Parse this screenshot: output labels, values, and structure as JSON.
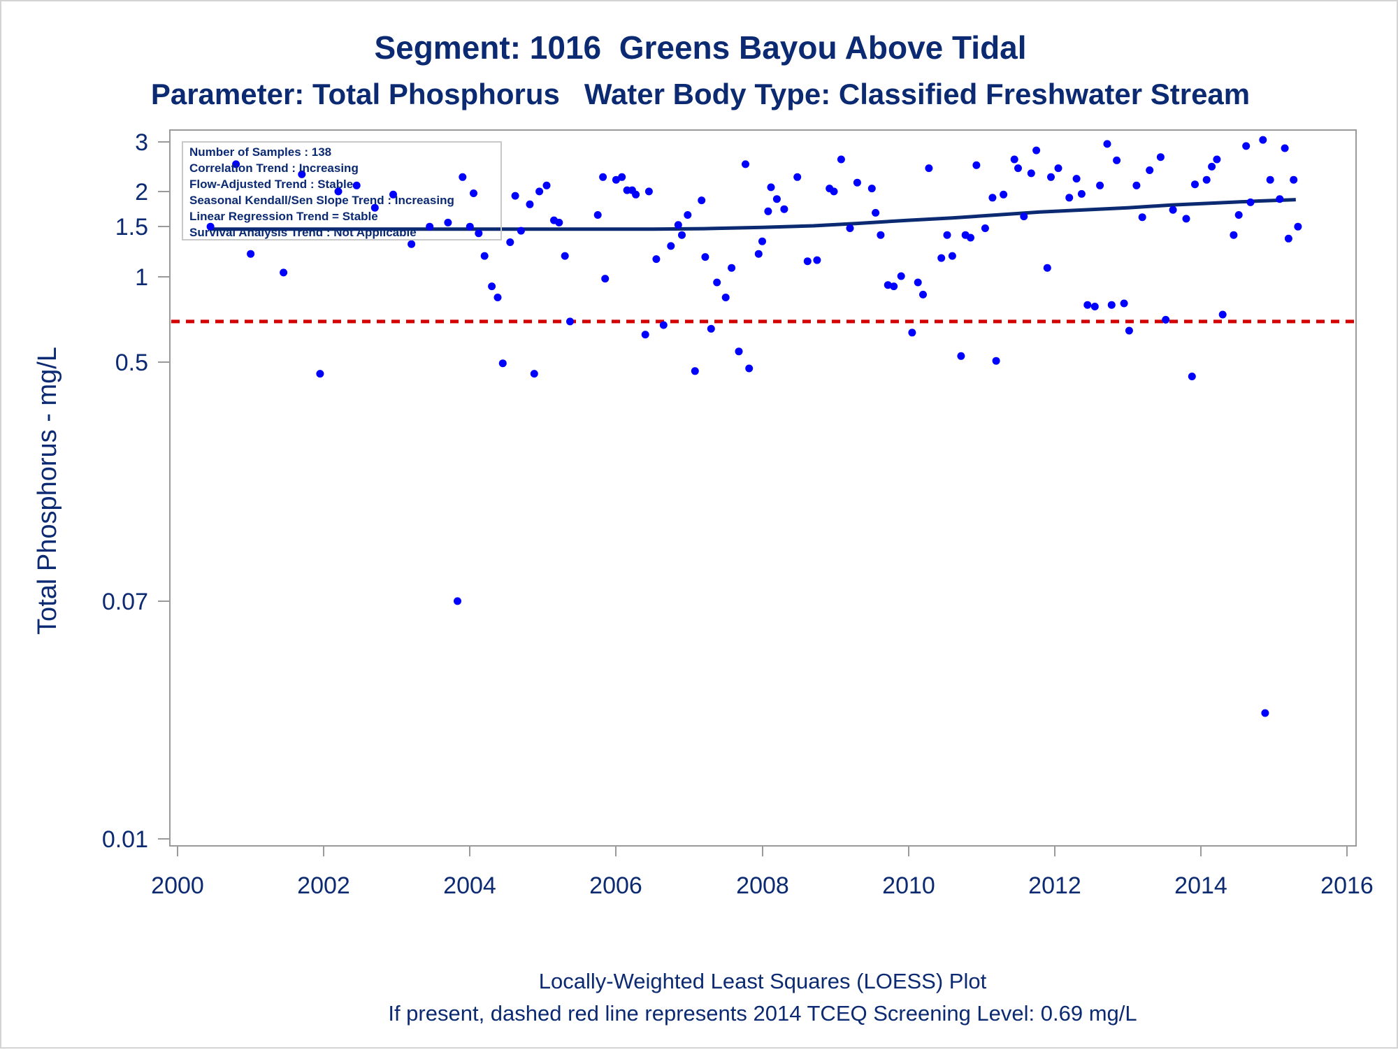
{
  "chart_data": {
    "type": "scatter",
    "title": "Segment: 1016  Greens Bayou Above Tidal",
    "subtitle": "Parameter: Total Phosphorus   Water Body Type: Classified Freshwater Stream",
    "xlabel": "",
    "ylabel": "Total Phosphorus - mg/L",
    "x_ticks": [
      "2000",
      "2002",
      "2004",
      "2006",
      "2008",
      "2010",
      "2012",
      "2014",
      "2016"
    ],
    "y_ticks": [
      "0.01",
      "0.07",
      "0.5",
      "1",
      "1.5",
      "2",
      "3"
    ],
    "y_scale": "log",
    "xlim": [
      2000,
      2016
    ],
    "ylim": [
      0.01,
      3
    ],
    "grid": false,
    "inset_lines": [
      "Number of Samples : 138",
      "Correlation Trend : Increasing",
      "Flow-Adjusted Trend : Stable",
      "Seasonal Kendall/Sen Slope Trend : Increasing",
      "Linear Regression Trend = Stable",
      "Survival Analysis Trend : Not Applicable"
    ],
    "footnotes": [
      "Locally-Weighted Least Squares (LOESS) Plot",
      "If present, dashed red line represents 2014 TCEQ Screening Level: 0.69 mg/L"
    ],
    "screening_level": 0.69,
    "colors": {
      "points": "#0000ff",
      "loess": "#0b2a72",
      "screening": "#d40000",
      "text": "#0b2a72"
    },
    "series": [
      {
        "type": "scatter",
        "points": [
          [
            2000.45,
            1.5
          ],
          [
            2000.8,
            2.5
          ],
          [
            2001.0,
            1.2
          ],
          [
            2001.45,
            1.03
          ],
          [
            2001.7,
            2.3
          ],
          [
            2001.95,
            0.45
          ],
          [
            2002.2,
            2.0
          ],
          [
            2002.45,
            2.1
          ],
          [
            2002.7,
            1.75
          ],
          [
            2002.95,
            1.95
          ],
          [
            2003.2,
            1.3
          ],
          [
            2003.45,
            1.5
          ],
          [
            2003.7,
            1.55
          ],
          [
            2003.83,
            0.07
          ],
          [
            2003.9,
            2.25
          ],
          [
            2004.0,
            1.5
          ],
          [
            2004.05,
            1.97
          ],
          [
            2004.12,
            1.42
          ],
          [
            2004.2,
            1.18
          ],
          [
            2004.3,
            0.92
          ],
          [
            2004.38,
            0.84
          ],
          [
            2004.45,
            0.49
          ],
          [
            2004.55,
            1.32
          ],
          [
            2004.62,
            1.93
          ],
          [
            2004.7,
            1.45
          ],
          [
            2004.82,
            1.8
          ],
          [
            2004.88,
            0.45
          ],
          [
            2004.95,
            2.0
          ],
          [
            2005.05,
            2.1
          ],
          [
            2005.15,
            1.58
          ],
          [
            2005.22,
            1.55
          ],
          [
            2005.3,
            1.18
          ],
          [
            2005.37,
            0.69
          ],
          [
            2005.75,
            1.65
          ],
          [
            2005.82,
            2.25
          ],
          [
            2005.85,
            0.98
          ],
          [
            2006.0,
            2.2
          ],
          [
            2006.08,
            2.25
          ],
          [
            2006.15,
            2.02
          ],
          [
            2006.22,
            2.02
          ],
          [
            2006.27,
            1.95
          ],
          [
            2006.4,
            0.62
          ],
          [
            2006.45,
            2.0
          ],
          [
            2006.55,
            1.15
          ],
          [
            2006.65,
            0.67
          ],
          [
            2006.75,
            1.28
          ],
          [
            2006.85,
            1.52
          ],
          [
            2006.9,
            1.4
          ],
          [
            2006.98,
            1.65
          ],
          [
            2007.08,
            0.46
          ],
          [
            2007.17,
            1.86
          ],
          [
            2007.22,
            1.17
          ],
          [
            2007.3,
            0.65
          ],
          [
            2007.38,
            0.95
          ],
          [
            2007.5,
            0.84
          ],
          [
            2007.58,
            1.07
          ],
          [
            2007.68,
            0.54
          ],
          [
            2007.77,
            2.5
          ],
          [
            2007.82,
            0.47
          ],
          [
            2007.95,
            1.2
          ],
          [
            2008.0,
            1.33
          ],
          [
            2008.08,
            1.7
          ],
          [
            2008.12,
            2.07
          ],
          [
            2008.2,
            1.88
          ],
          [
            2008.3,
            1.73
          ],
          [
            2008.48,
            2.25
          ],
          [
            2008.62,
            1.13
          ],
          [
            2008.75,
            1.14
          ],
          [
            2008.92,
            2.05
          ],
          [
            2008.98,
            2.0
          ],
          [
            2009.08,
            2.6
          ],
          [
            2009.2,
            1.48
          ],
          [
            2009.3,
            2.15
          ],
          [
            2009.5,
            2.05
          ],
          [
            2009.55,
            1.68
          ],
          [
            2009.62,
            1.4
          ],
          [
            2009.72,
            0.93
          ],
          [
            2009.8,
            0.92
          ],
          [
            2009.9,
            1.0
          ],
          [
            2010.05,
            0.63
          ],
          [
            2010.13,
            0.95
          ],
          [
            2010.2,
            0.86
          ],
          [
            2010.28,
            2.42
          ],
          [
            2010.45,
            1.16
          ],
          [
            2010.53,
            1.4
          ],
          [
            2010.6,
            1.18
          ],
          [
            2010.72,
            0.52
          ],
          [
            2010.78,
            1.4
          ],
          [
            2010.85,
            1.37
          ],
          [
            2010.93,
            2.48
          ],
          [
            2011.05,
            1.48
          ],
          [
            2011.15,
            1.9
          ],
          [
            2011.2,
            0.5
          ],
          [
            2011.3,
            1.95
          ],
          [
            2011.45,
            2.6
          ],
          [
            2011.5,
            2.42
          ],
          [
            2011.58,
            1.63
          ],
          [
            2011.68,
            2.32
          ],
          [
            2011.75,
            2.8
          ],
          [
            2011.9,
            1.07
          ],
          [
            2011.95,
            2.25
          ],
          [
            2012.05,
            2.42
          ],
          [
            2012.2,
            1.9
          ],
          [
            2012.3,
            2.22
          ],
          [
            2012.37,
            1.96
          ],
          [
            2012.45,
            0.79
          ],
          [
            2012.55,
            0.78
          ],
          [
            2012.62,
            2.1
          ],
          [
            2012.72,
            2.95
          ],
          [
            2012.78,
            0.79
          ],
          [
            2012.85,
            2.58
          ],
          [
            2012.95,
            0.8
          ],
          [
            2013.02,
            0.64
          ],
          [
            2013.12,
            2.1
          ],
          [
            2013.2,
            1.62
          ],
          [
            2013.3,
            2.38
          ],
          [
            2013.45,
            2.65
          ],
          [
            2013.52,
            0.7
          ],
          [
            2013.62,
            1.72
          ],
          [
            2013.8,
            1.6
          ],
          [
            2013.88,
            0.44
          ],
          [
            2013.92,
            2.12
          ],
          [
            2014.08,
            2.2
          ],
          [
            2014.15,
            2.45
          ],
          [
            2014.22,
            2.6
          ],
          [
            2014.3,
            0.73
          ],
          [
            2014.45,
            1.4
          ],
          [
            2014.52,
            1.65
          ],
          [
            2014.62,
            2.9
          ],
          [
            2014.68,
            1.83
          ],
          [
            2014.85,
            3.05
          ],
          [
            2014.88,
            0.028
          ],
          [
            2014.95,
            2.2
          ],
          [
            2015.08,
            1.88
          ],
          [
            2015.15,
            2.85
          ],
          [
            2015.2,
            1.36
          ],
          [
            2015.27,
            2.2
          ],
          [
            2015.33,
            1.5
          ]
        ]
      },
      {
        "type": "line",
        "name": "",
        "points": [
          [
            2000.45,
            1.47
          ],
          [
            2003.0,
            1.47
          ],
          [
            2005.5,
            1.47
          ],
          [
            2006.5,
            1.47
          ],
          [
            2007.2,
            1.475
          ],
          [
            2008.0,
            1.49
          ],
          [
            2008.7,
            1.51
          ],
          [
            2009.3,
            1.54
          ],
          [
            2010.0,
            1.58
          ],
          [
            2010.6,
            1.61
          ],
          [
            2011.2,
            1.65
          ],
          [
            2011.8,
            1.69
          ],
          [
            2012.4,
            1.72
          ],
          [
            2013.0,
            1.75
          ],
          [
            2013.6,
            1.79
          ],
          [
            2014.2,
            1.82
          ],
          [
            2014.8,
            1.85
          ],
          [
            2015.3,
            1.87
          ]
        ]
      }
    ]
  }
}
